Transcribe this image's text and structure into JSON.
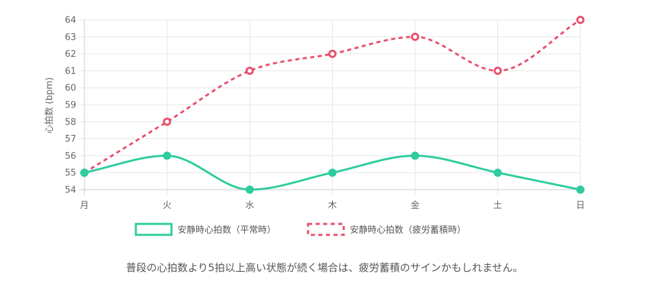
{
  "chart_data": {
    "type": "line",
    "categories": [
      "月",
      "火",
      "水",
      "木",
      "金",
      "土",
      "日"
    ],
    "series": [
      {
        "name": "安静時心拍数（平常時）",
        "values": [
          55,
          56,
          54,
          55,
          56,
          55,
          54
        ],
        "color": "#2ecc9e",
        "style": "solid"
      },
      {
        "name": "安静時心拍数（疲労蓄積時）",
        "values": [
          55,
          58,
          61,
          62,
          63,
          61,
          64
        ],
        "color": "#e8506e",
        "style": "dashed"
      }
    ],
    "ylabel": "心拍数 (bpm)",
    "ylim": [
      54,
      64
    ],
    "yticks": [
      54,
      55,
      56,
      57,
      58,
      59,
      60,
      61,
      62,
      63,
      64
    ],
    "grid": true,
    "legend_position": "bottom"
  },
  "caption": "普段の心拍数より5拍以上高い状態が続く場合は、疲労蓄積のサインかもしれません。"
}
